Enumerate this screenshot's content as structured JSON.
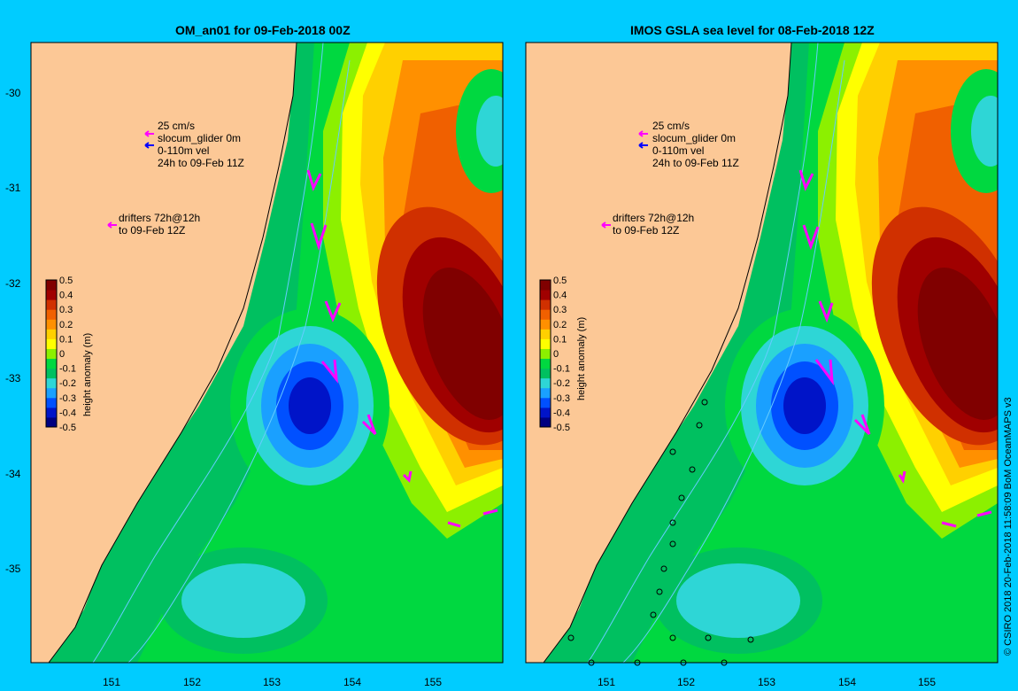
{
  "panels": [
    {
      "id": "left",
      "title": "OM_an01 for 09-Feb-2018 00Z"
    },
    {
      "id": "right",
      "title": "IMOS GSLA sea level  for 08-Feb-2018 12Z"
    }
  ],
  "axes": {
    "lat_ticks": [
      "-30",
      "-31",
      "-32",
      "-33",
      "-34",
      "-35"
    ],
    "lon_ticks": [
      "151",
      "152",
      "153",
      "154",
      "155"
    ]
  },
  "legend": {
    "scale": "25 cm/s",
    "glider": "slocum_glider 0m",
    "vel": "0-110m vel",
    "window": "24h to 09-Feb 11Z",
    "drifters_1": "drifters 72h@12h",
    "drifters_2": "to 09-Feb 12Z"
  },
  "colorbar": {
    "label": "height anomaly (m)",
    "ticks": [
      "0.5",
      "0.4",
      "0.3",
      "0.2",
      "0.1",
      "0",
      "-0.1",
      "-0.2",
      "-0.3",
      "-0.4",
      "-0.5"
    ],
    "colors": [
      "#000080",
      "#0014c8",
      "#0050ff",
      "#1aa0ff",
      "#2ed6d6",
      "#00c060",
      "#00d840",
      "#8cf000",
      "#ffff00",
      "#ffd000",
      "#ff9000",
      "#f06000",
      "#d03000",
      "#a00000",
      "#800000"
    ]
  },
  "credit": "© CSIRO 2018   20-Feb-2018 11:58:09 BoM OceanMAPS v3",
  "colors": {
    "background": "#00ccff",
    "land": "#fcc896",
    "arrow": "#ff00ff"
  }
}
